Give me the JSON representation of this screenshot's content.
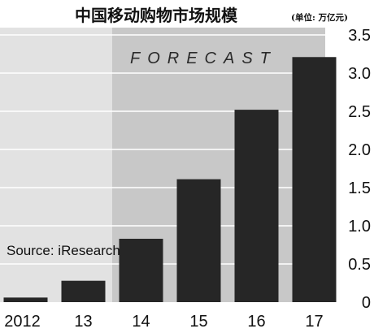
{
  "colors": {
    "background": "#ffffff",
    "plot_background": "#e2e2e2",
    "forecast_background": "#c8c8c8",
    "bar": "#262626",
    "gridline": "#ffffff",
    "text": "#111111"
  },
  "chart_data": {
    "type": "bar",
    "title": "中国移动购物市场规模",
    "unit": "(单位: 万亿元)",
    "categories": [
      "2012",
      "13",
      "14",
      "15",
      "16",
      "17"
    ],
    "values": [
      0.06,
      0.28,
      0.83,
      1.61,
      2.52,
      3.21
    ],
    "ylim": [
      0,
      3.5
    ],
    "y_ticks": [
      "0",
      "0.5",
      "1.0",
      "1.5",
      "2.0",
      "2.5",
      "3.0",
      "3.5"
    ],
    "y_axis_side": "right",
    "grid": true,
    "forecast_label": "FORECAST",
    "forecast_categories": [
      "14",
      "15",
      "16",
      "17"
    ],
    "source": "Source: iResearch"
  }
}
